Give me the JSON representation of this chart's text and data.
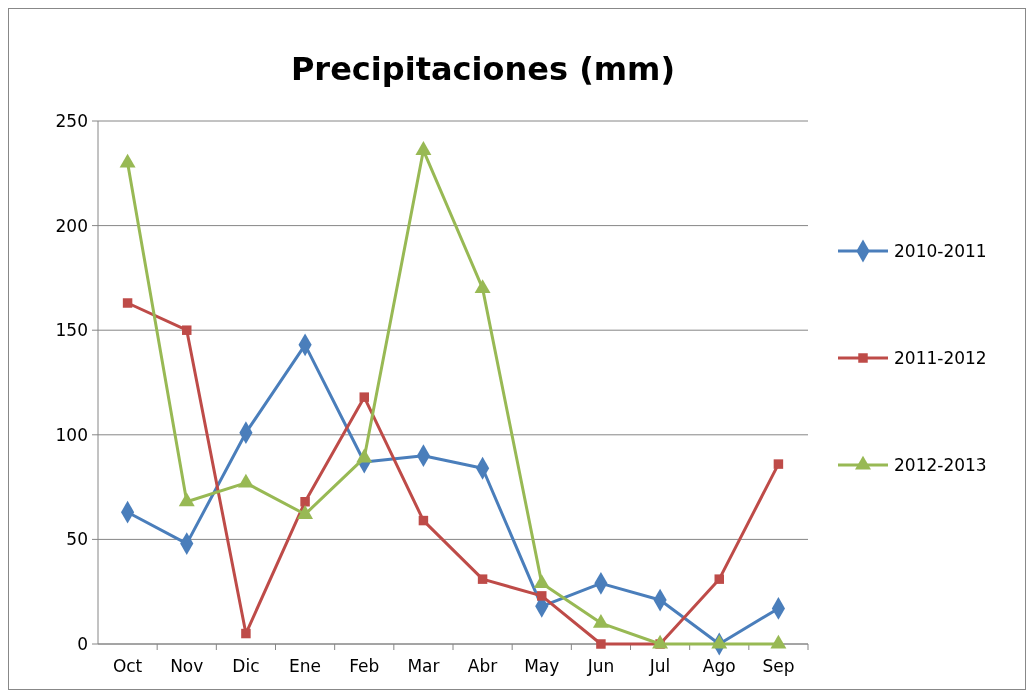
{
  "chart_data": {
    "type": "line",
    "title": "Precipitaciones (mm)",
    "categories": [
      "Oct",
      "Nov",
      "Dic",
      "Ene",
      "Feb",
      "Mar",
      "Abr",
      "May",
      "Jun",
      "Jul",
      "Ago",
      "Sep"
    ],
    "series": [
      {
        "name": "2010-2011",
        "color": "#4a7ebb",
        "marker": "diamond",
        "values": [
          63,
          48,
          101,
          143,
          87,
          90,
          84,
          18,
          29,
          21,
          0,
          17
        ]
      },
      {
        "name": "2011-2012",
        "color": "#be4b48",
        "marker": "square",
        "values": [
          163,
          150,
          5,
          68,
          118,
          59,
          31,
          23,
          0,
          0,
          31,
          86
        ]
      },
      {
        "name": "2012-2013",
        "color": "#98b954",
        "marker": "triangle",
        "values": [
          230,
          68,
          77,
          62,
          89,
          236,
          170,
          29,
          10,
          0,
          0,
          0
        ]
      }
    ],
    "ylim": [
      0,
      250
    ],
    "yticks": [
      0,
      50,
      100,
      150,
      200,
      250
    ],
    "grid": "y",
    "legend": "right"
  }
}
